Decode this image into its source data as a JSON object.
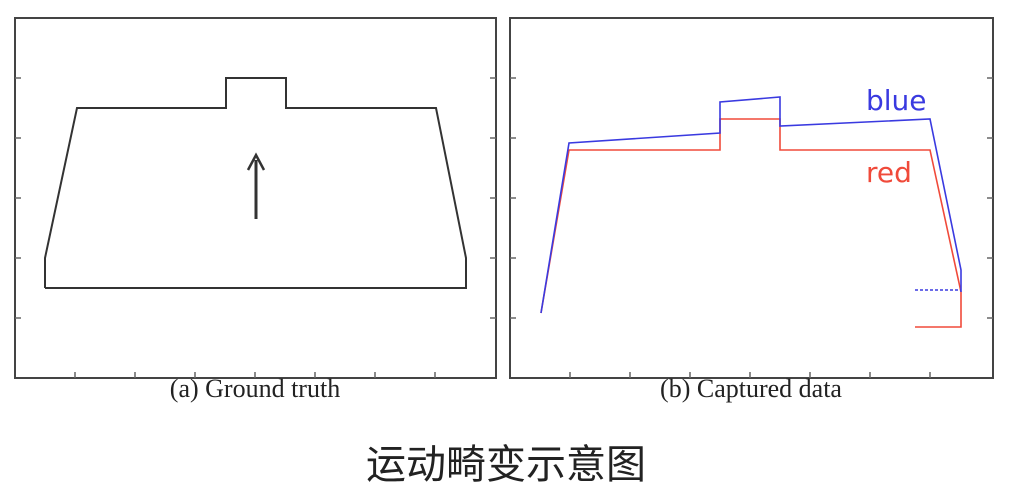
{
  "panels": [
    {
      "caption": "(a)  Ground truth"
    },
    {
      "caption": "(b)  Captured data",
      "series": [
        {
          "label": "blue",
          "color": "#3a3ae0"
        },
        {
          "label": "red",
          "color": "#f04a3a"
        }
      ]
    }
  ],
  "figure_caption": "运动畸变示意图"
}
